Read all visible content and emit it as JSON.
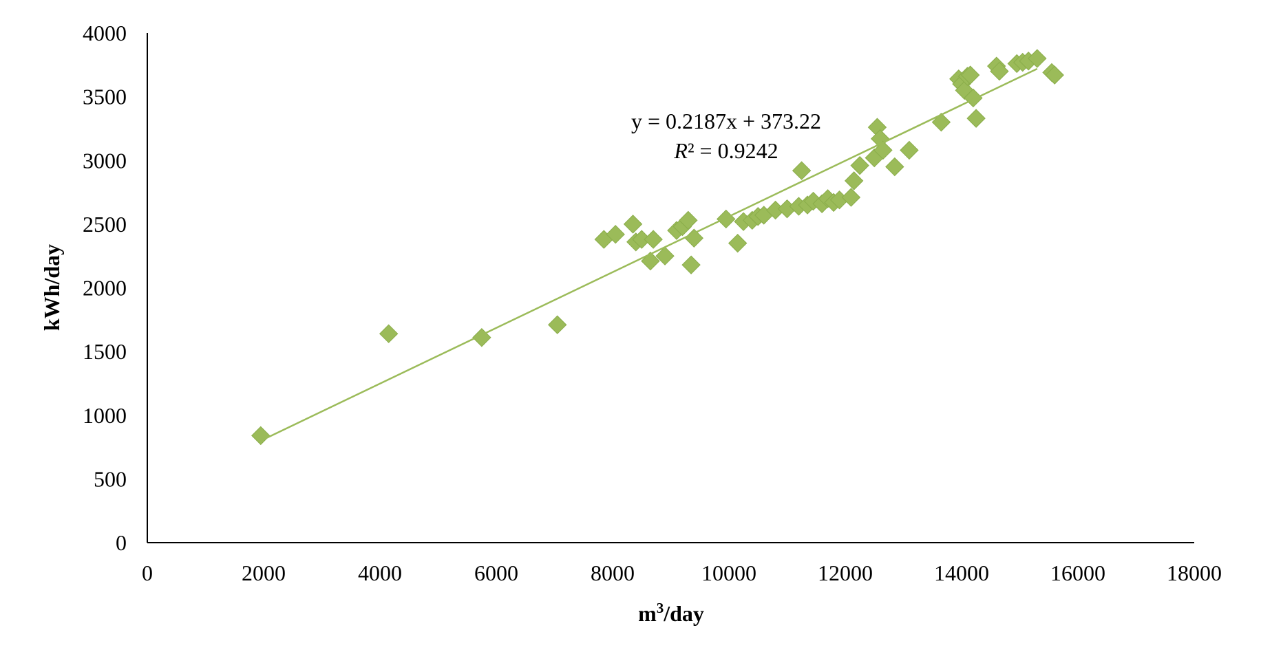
{
  "chart_data": {
    "type": "scatter",
    "title": "",
    "xlabel_main": "m",
    "xlabel_sup": "3",
    "xlabel_rest": "/day",
    "ylabel": "kWh/day",
    "xlim": [
      0,
      18000
    ],
    "ylim": [
      0,
      4000
    ],
    "xticks": [
      "0",
      "2000",
      "4000",
      "6000",
      "8000",
      "10000",
      "12000",
      "14000",
      "16000",
      "18000"
    ],
    "yticks": [
      "0",
      "500",
      "1000",
      "1500",
      "2000",
      "2500",
      "3000",
      "3500",
      "4000"
    ],
    "grid": false,
    "legend": "none",
    "marker_color": "#9BBB59",
    "trendline_color": "#9BBB59",
    "trendline": {
      "slope": 0.2187,
      "intercept": 373.22,
      "x_range": [
        1950,
        15300
      ]
    },
    "equation_text": "y = 0.2187x + 373.22",
    "r2_label": "R",
    "r2_value": "² = 0.9242",
    "series": [
      {
        "x": [
          1950,
          4150,
          5750,
          7050,
          7850,
          8050,
          8350,
          8400,
          8500,
          8650,
          8700,
          8900,
          9100,
          9200,
          9300,
          9350,
          9400,
          9950,
          10150,
          10250,
          10400,
          10500,
          10600,
          10800,
          11000,
          11200,
          11250,
          11350,
          11450,
          11600,
          11700,
          11800,
          11900,
          12100,
          12150,
          12250,
          12500,
          12550,
          12600,
          12650,
          12850,
          13100,
          13650,
          13950,
          14000,
          14050,
          14100,
          14150,
          14200,
          14250,
          14600,
          14650,
          14950,
          15050,
          15150,
          15300,
          15550,
          15600
        ],
        "y": [
          840,
          1640,
          1610,
          1710,
          2380,
          2420,
          2500,
          2360,
          2380,
          2210,
          2380,
          2250,
          2450,
          2480,
          2530,
          2180,
          2390,
          2540,
          2350,
          2520,
          2530,
          2560,
          2570,
          2610,
          2620,
          2640,
          2920,
          2650,
          2680,
          2660,
          2700,
          2670,
          2690,
          2710,
          2840,
          2960,
          3020,
          3260,
          3170,
          3080,
          2950,
          3080,
          3300,
          3640,
          3600,
          3550,
          3660,
          3670,
          3490,
          3330,
          3740,
          3700,
          3760,
          3770,
          3780,
          3800,
          3690,
          3670
        ]
      }
    ]
  }
}
